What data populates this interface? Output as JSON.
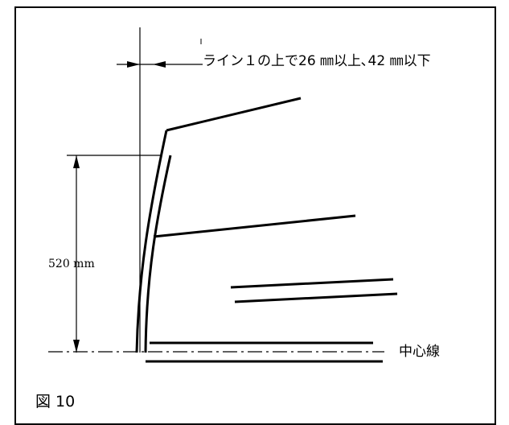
{
  "figure": {
    "annotation_text": "ライン１の上で26 ㎜以上､42 ㎜以下",
    "dimension_label": "520 mm",
    "centerline_label": "中心線",
    "figure_caption": "図 10"
  }
}
